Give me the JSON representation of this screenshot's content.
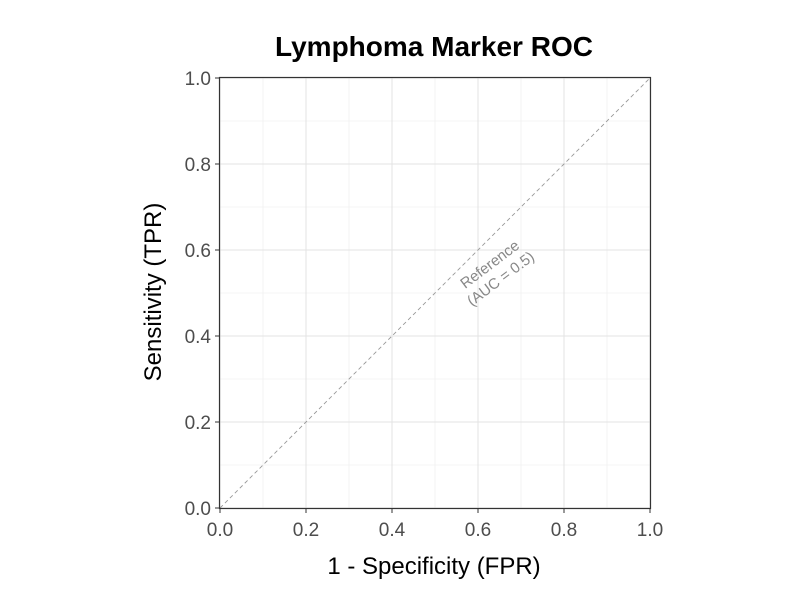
{
  "chart_data": {
    "type": "line",
    "title": "Lymphoma Marker ROC",
    "xlabel": "1 - Specificity (FPR)",
    "ylabel": "Sensitivity (TPR)",
    "xlim": [
      0,
      1
    ],
    "ylim": [
      0,
      1
    ],
    "x_ticks": [
      "0.0",
      "0.2",
      "0.4",
      "0.6",
      "0.8",
      "1.0"
    ],
    "y_ticks": [
      "0.0",
      "0.2",
      "0.4",
      "0.6",
      "0.8",
      "1.0"
    ],
    "x_tick_values": [
      0,
      0.2,
      0.4,
      0.6,
      0.8,
      1.0
    ],
    "y_tick_values": [
      0,
      0.2,
      0.4,
      0.6,
      0.8,
      1.0
    ],
    "grid": true,
    "series": [
      {
        "style": "dashed",
        "color": "#999999",
        "x": [
          0,
          1
        ],
        "y": [
          0,
          1
        ]
      }
    ],
    "annotations": [
      {
        "lines": [
          "Reference",
          "(AUC = 0.5)"
        ],
        "x": 0.64,
        "y": 0.55,
        "angle_deg": -37,
        "color": "#888888"
      }
    ]
  }
}
